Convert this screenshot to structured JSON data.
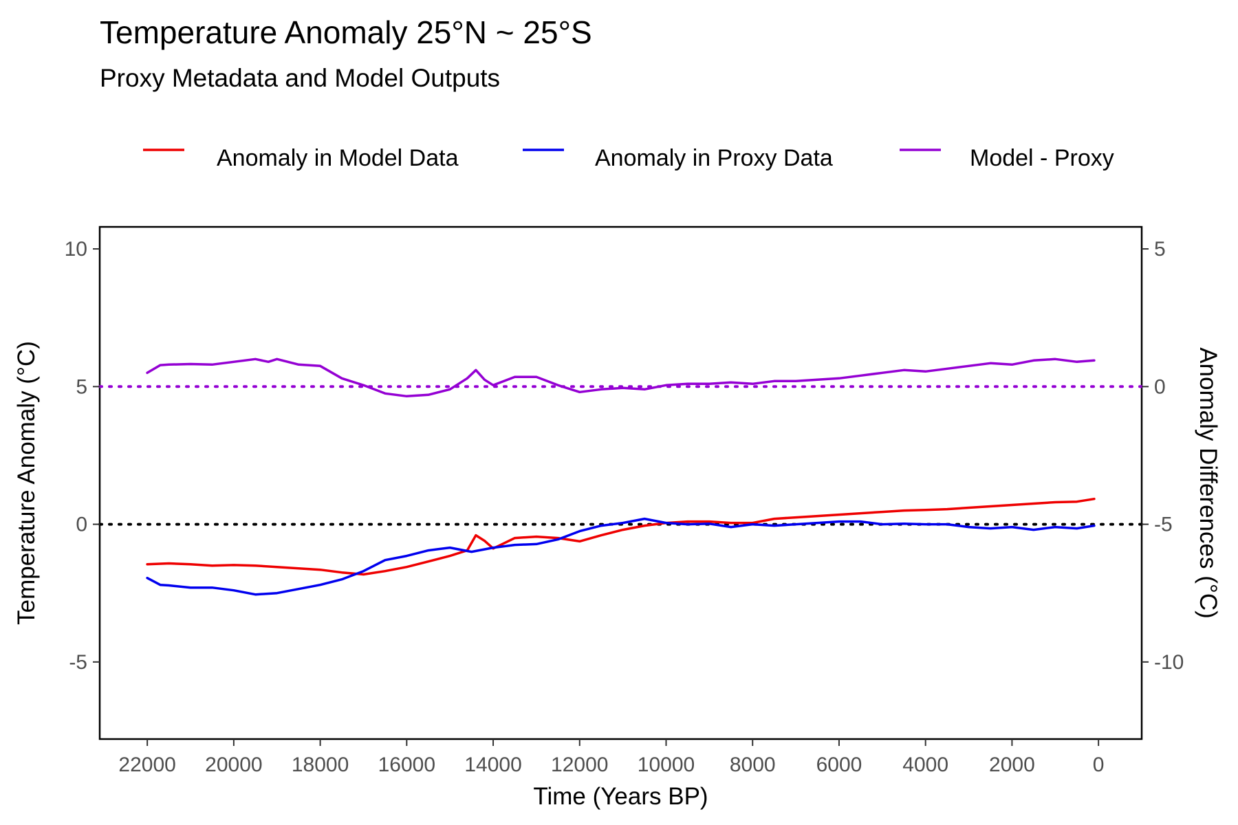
{
  "chart_data": {
    "type": "line",
    "title": "Temperature Anomaly 25°N ~ 25°S",
    "subtitle": "Proxy Metadata and Model Outputs",
    "xlabel": "Time (Years BP)",
    "ylabel": "Temperature Anomaly (°C)",
    "ylabel_right": "Anomaly Differences (°C)",
    "x_reversed": true,
    "xlim": [
      23100,
      -1000
    ],
    "ylim": [
      -7.8,
      10.8
    ],
    "ylim_right": [
      -12.8,
      5.8
    ],
    "right_axis_offset": 5,
    "x_ticks": [
      22000,
      20000,
      18000,
      16000,
      14000,
      12000,
      10000,
      8000,
      6000,
      4000,
      2000,
      0
    ],
    "x_tick_labels": [
      "22000",
      "20000",
      "18000",
      "16000",
      "14000",
      "12000",
      "10000",
      "8000",
      "6000",
      "4000",
      "2000",
      "0"
    ],
    "y_ticks": [
      -5,
      0,
      5,
      10
    ],
    "y_tick_labels": [
      "-5",
      "0",
      "5",
      "10"
    ],
    "y_ticks_right": [
      -10,
      -5,
      0,
      5
    ],
    "y_tick_labels_right": [
      "-10",
      "-5",
      "0",
      "5"
    ],
    "grid": false,
    "legend_position": "top",
    "reference_lines": [
      {
        "axis": "left",
        "y": 0,
        "color": "#000000",
        "style": "dotted"
      },
      {
        "axis": "right",
        "y": 0,
        "color": "#9400D3",
        "style": "dotted"
      }
    ],
    "series": [
      {
        "name": "Anomaly in Model Data",
        "color": "#EE0000",
        "axis": "left",
        "x": [
          22000,
          21500,
          21000,
          20500,
          20000,
          19500,
          19000,
          18500,
          18000,
          17500,
          17000,
          16500,
          16000,
          15500,
          15000,
          14600,
          14400,
          14200,
          14000,
          13500,
          13000,
          12500,
          12000,
          11500,
          11000,
          10500,
          10000,
          9500,
          9000,
          8500,
          8000,
          7500,
          7000,
          6500,
          6000,
          5500,
          5000,
          4500,
          4000,
          3500,
          3000,
          2500,
          2000,
          1500,
          1000,
          500,
          100
        ],
        "y": [
          -1.45,
          -1.42,
          -1.45,
          -1.5,
          -1.48,
          -1.5,
          -1.55,
          -1.6,
          -1.65,
          -1.75,
          -1.82,
          -1.7,
          -1.55,
          -1.35,
          -1.15,
          -0.95,
          -0.4,
          -0.6,
          -0.88,
          -0.5,
          -0.45,
          -0.5,
          -0.62,
          -0.4,
          -0.2,
          -0.05,
          0.05,
          0.1,
          0.1,
          0.05,
          0.05,
          0.2,
          0.25,
          0.3,
          0.35,
          0.4,
          0.45,
          0.5,
          0.52,
          0.55,
          0.6,
          0.65,
          0.7,
          0.75,
          0.8,
          0.82,
          0.92
        ]
      },
      {
        "name": "Anomaly in Proxy Data",
        "color": "#0000EE",
        "axis": "left",
        "x": [
          22000,
          21700,
          21500,
          21000,
          20500,
          20000,
          19500,
          19000,
          18500,
          18000,
          17500,
          17000,
          16500,
          16000,
          15500,
          15000,
          14500,
          14000,
          13500,
          13000,
          12500,
          12000,
          11500,
          11000,
          10500,
          10000,
          9500,
          9000,
          8500,
          8000,
          7500,
          7000,
          6500,
          6000,
          5500,
          5000,
          4500,
          4000,
          3500,
          3000,
          2500,
          2000,
          1500,
          1000,
          500,
          100
        ],
        "y": [
          -1.95,
          -2.2,
          -2.22,
          -2.3,
          -2.3,
          -2.4,
          -2.55,
          -2.5,
          -2.35,
          -2.2,
          -2.0,
          -1.7,
          -1.3,
          -1.15,
          -0.95,
          -0.85,
          -1.0,
          -0.85,
          -0.75,
          -0.72,
          -0.55,
          -0.25,
          -0.05,
          0.05,
          0.2,
          0.05,
          0.0,
          0.02,
          -0.1,
          0.0,
          -0.05,
          0.0,
          0.05,
          0.1,
          0.1,
          0.0,
          0.02,
          0.0,
          0.0,
          -0.1,
          -0.15,
          -0.1,
          -0.2,
          -0.1,
          -0.15,
          -0.05
        ]
      },
      {
        "name": "Model - Proxy",
        "color": "#9400D3",
        "axis": "right",
        "x": [
          22000,
          21700,
          21500,
          21000,
          20500,
          20000,
          19500,
          19200,
          19000,
          18500,
          18000,
          17500,
          17000,
          16500,
          16000,
          15500,
          15000,
          14600,
          14400,
          14200,
          14000,
          13500,
          13000,
          12500,
          12000,
          11500,
          11000,
          10500,
          10000,
          9500,
          9000,
          8500,
          8000,
          7500,
          7000,
          6500,
          6000,
          5500,
          5000,
          4500,
          4000,
          3500,
          3000,
          2500,
          2000,
          1500,
          1000,
          500,
          100
        ],
        "y": [
          0.5,
          0.78,
          0.8,
          0.82,
          0.8,
          0.9,
          1.0,
          0.9,
          1.0,
          0.8,
          0.75,
          0.3,
          0.05,
          -0.25,
          -0.35,
          -0.3,
          -0.1,
          0.3,
          0.6,
          0.25,
          0.05,
          0.35,
          0.35,
          0.05,
          -0.2,
          -0.1,
          -0.05,
          -0.1,
          0.05,
          0.1,
          0.1,
          0.15,
          0.1,
          0.2,
          0.2,
          0.25,
          0.3,
          0.4,
          0.5,
          0.6,
          0.55,
          0.65,
          0.75,
          0.85,
          0.8,
          0.95,
          1.0,
          0.9,
          0.95
        ]
      }
    ]
  }
}
